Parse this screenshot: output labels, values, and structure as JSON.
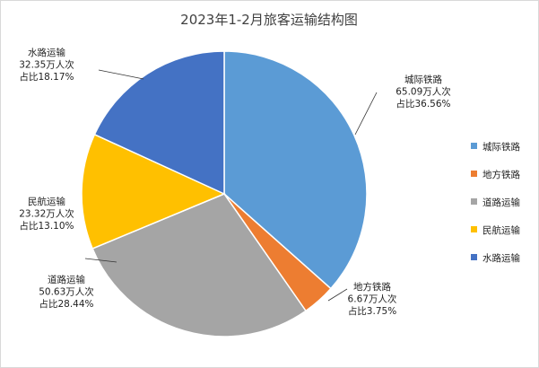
{
  "chart_data": {
    "type": "pie",
    "title": "2023年1-2月旅客运输结构图",
    "categories": [
      "城际铁路",
      "地方铁路",
      "道路运输",
      "民航运输",
      "水路运输"
    ],
    "values": [
      65.09,
      6.67,
      50.63,
      23.32,
      32.35
    ],
    "unit": "万人次",
    "percent_labels": [
      "36.56%",
      "3.75%",
      "28.44%",
      "13.10%",
      "18.17%"
    ],
    "data_labels": [
      {
        "name": "城际铁路",
        "value": "65.09万人次",
        "share": "占比36.56%"
      },
      {
        "name": "地方铁路",
        "value": "6.67万人次",
        "share": "占比3.75%"
      },
      {
        "name": "道路运输",
        "value": "50.63万人次",
        "share": "占比28.44%"
      },
      {
        "name": "民航运输",
        "value": "23.32万人次",
        "share": "占比13.10%"
      },
      {
        "name": "水路运输",
        "value": "32.35万人次",
        "share": "占比18.17%"
      }
    ],
    "colors": [
      "#5b9bd5",
      "#ed7d31",
      "#a5a5a5",
      "#ffc000",
      "#4472c4"
    ],
    "legend_position": "right",
    "start_angle": "12 o'clock",
    "direction": "clockwise"
  }
}
